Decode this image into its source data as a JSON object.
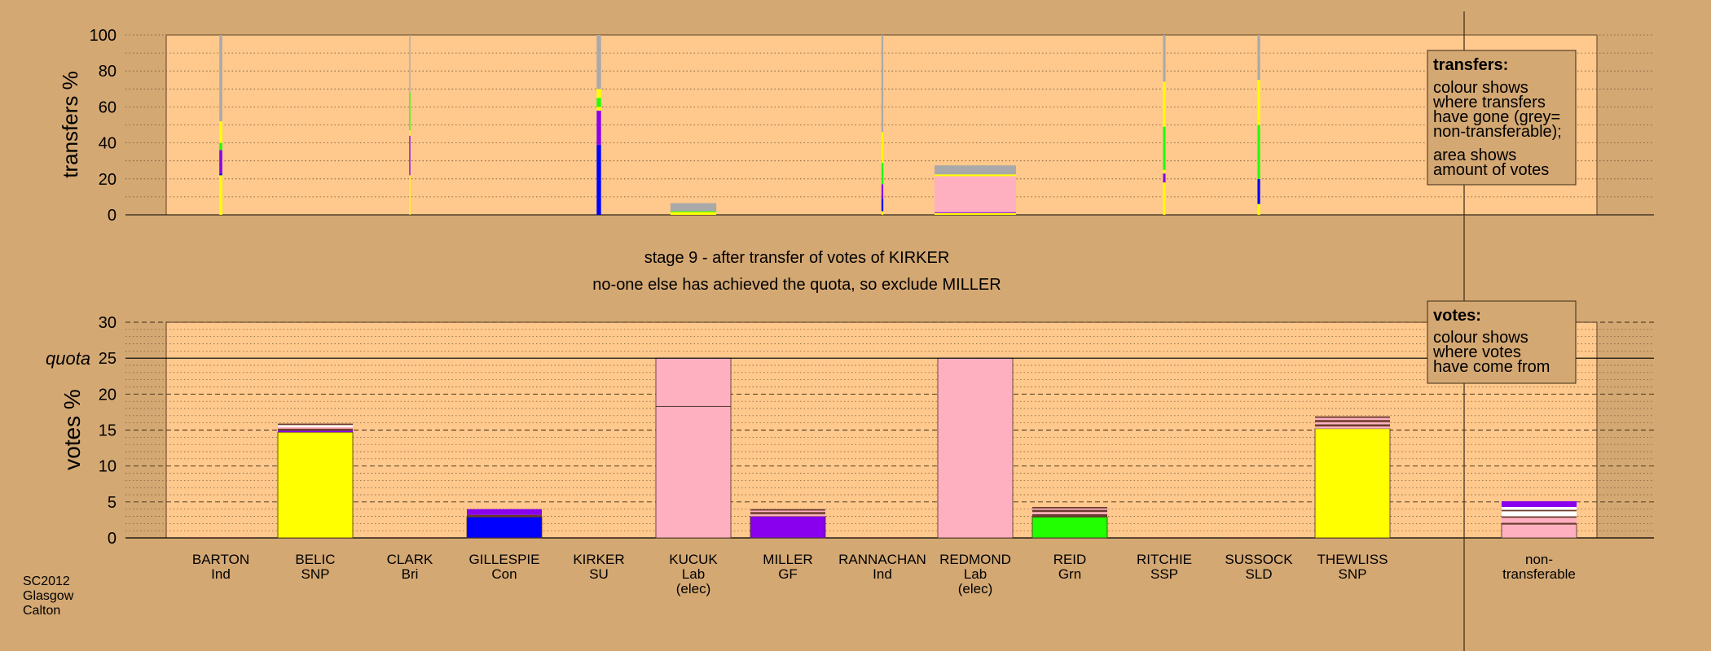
{
  "source": [
    "SC2012",
    "Glasgow",
    "Calton"
  ],
  "stage_line1": "stage 9 - after transfer of votes of KIRKER",
  "stage_line2": "no-one else has achieved the quota, so exclude MILLER",
  "legend_transfers": {
    "title": "transfers:",
    "lines": [
      "colour shows",
      "where transfers",
      "have gone (grey=",
      "non-transferable);",
      "area shows",
      "amount of votes"
    ]
  },
  "legend_votes": {
    "title": "votes:",
    "lines": [
      "colour shows",
      "where votes",
      "have come from"
    ]
  },
  "candidates": [
    {
      "name": "BARTON",
      "party": "Ind",
      "note": ""
    },
    {
      "name": "BELIC",
      "party": "SNP",
      "note": ""
    },
    {
      "name": "CLARK",
      "party": "Bri",
      "note": ""
    },
    {
      "name": "GILLESPIE",
      "party": "Con",
      "note": ""
    },
    {
      "name": "KIRKER",
      "party": "SU",
      "note": ""
    },
    {
      "name": "KUCUK",
      "party": "Lab",
      "note": "(elec)"
    },
    {
      "name": "MILLER",
      "party": "GF",
      "note": ""
    },
    {
      "name": "RANNACHAN",
      "party": "Ind",
      "note": ""
    },
    {
      "name": "REDMOND",
      "party": "Lab",
      "note": "(elec)"
    },
    {
      "name": "REID",
      "party": "Grn",
      "note": ""
    },
    {
      "name": "RITCHIE",
      "party": "SSP",
      "note": ""
    },
    {
      "name": "SUSSOCK",
      "party": "SLD",
      "note": ""
    },
    {
      "name": "THEWLISS",
      "party": "SNP",
      "note": ""
    }
  ],
  "nontransferable_label": [
    "non-",
    "transferable"
  ],
  "colors": {
    "background": "#d4a873",
    "panel": "#ffc88c",
    "SNP": "#ffff00",
    "Lab": "#ffb0c0",
    "Con": "#0000ff",
    "GF": "#8800ee",
    "Grn": "#22ff00",
    "nontransferable": "#a9a9a9",
    "dark": "#6b3a2e",
    "white": "#ffffff"
  },
  "chart_data": [
    {
      "type": "bar",
      "ylabel": "transfers %",
      "ylim": [
        0,
        100
      ],
      "yticks": [
        0,
        20,
        40,
        60,
        80,
        100
      ],
      "columns": [
        {
          "candidate": "BARTON",
          "width": 0.4,
          "segments": [
            {
              "c": "SNP",
              "v": 22
            },
            {
              "c": "Con",
              "v": 1
            },
            {
              "c": "GF",
              "v": 13
            },
            {
              "c": "Grn",
              "v": 4
            },
            {
              "c": "SNP",
              "v": 12
            },
            {
              "c": "nontransferable",
              "v": 48
            }
          ]
        },
        {
          "candidate": "CLARK",
          "width": 0.15,
          "segments": [
            {
              "c": "SNP",
              "v": 22
            },
            {
              "c": "GF",
              "v": 22
            },
            {
              "c": "SNP",
              "v": 3
            },
            {
              "c": "Grn",
              "v": 21
            },
            {
              "c": "nontransferable",
              "v": 32
            }
          ]
        },
        {
          "candidate": "KIRKER",
          "width": 0.6,
          "segments": [
            {
              "c": "Con",
              "v": 39
            },
            {
              "c": "GF",
              "v": 19
            },
            {
              "c": "SNP",
              "v": 2
            },
            {
              "c": "Grn",
              "v": 5
            },
            {
              "c": "SNP",
              "v": 5
            },
            {
              "c": "nontransferable",
              "v": 30
            }
          ]
        },
        {
          "candidate": "KUCUK",
          "width": 6.3,
          "segments": [
            {
              "c": "SNP",
              "v": 1.5
            },
            {
              "c": "Grn",
              "v": 0.5
            },
            {
              "c": "nontransferable",
              "v": 4.5
            }
          ]
        },
        {
          "candidate": "RANNACHAN",
          "width": 0.25,
          "segments": [
            {
              "c": "SNP",
              "v": 2
            },
            {
              "c": "Con",
              "v": 7
            },
            {
              "c": "GF",
              "v": 8
            },
            {
              "c": "Grn",
              "v": 12
            },
            {
              "c": "SNP",
              "v": 17
            },
            {
              "c": "nontransferable",
              "v": 54
            }
          ]
        },
        {
          "candidate": "REDMOND",
          "width": 11.2,
          "segments": [
            {
              "c": "SNP",
              "v": 1
            },
            {
              "c": "GF",
              "v": 0.5
            },
            {
              "c": "Lab",
              "v": 20
            },
            {
              "c": "SNP",
              "v": 1
            },
            {
              "c": "nontransferable",
              "v": 5
            }
          ]
        },
        {
          "candidate": "RITCHIE",
          "width": 0.35,
          "segments": [
            {
              "c": "SNP",
              "v": 18
            },
            {
              "c": "GF",
              "v": 5
            },
            {
              "c": "SNP",
              "v": 2
            },
            {
              "c": "Grn",
              "v": 24
            },
            {
              "c": "SNP",
              "v": 25
            },
            {
              "c": "nontransferable",
              "v": 26
            }
          ]
        },
        {
          "candidate": "SUSSOCK",
          "width": 0.35,
          "segments": [
            {
              "c": "SNP",
              "v": 6
            },
            {
              "c": "Con",
              "v": 14
            },
            {
              "c": "Grn",
              "v": 30
            },
            {
              "c": "SNP",
              "v": 25
            },
            {
              "c": "nontransferable",
              "v": 25
            }
          ]
        }
      ]
    },
    {
      "type": "bar",
      "ylabel": "votes %",
      "ylim": [
        0,
        30
      ],
      "yticks": [
        0,
        5,
        10,
        15,
        20,
        25,
        30
      ],
      "quota_label": "quota",
      "quota": 25,
      "columns": [
        {
          "candidate": "BARTON",
          "segments": [
            {
              "c": "dark",
              "v": 0.1
            }
          ]
        },
        {
          "candidate": "BELIC",
          "segments": [
            {
              "c": "SNP",
              "v": 14.7
            },
            {
              "c": "GF",
              "v": 0.2
            },
            {
              "c": "dark",
              "v": 0.3
            },
            {
              "c": "Lab",
              "v": 0.2
            },
            {
              "c": "white",
              "v": 0.3
            },
            {
              "c": "dark",
              "v": 0.2
            }
          ]
        },
        {
          "candidate": "CLARK",
          "segments": [
            {
              "c": "dark",
              "v": 0.1
            }
          ]
        },
        {
          "candidate": "GILLESPIE",
          "segments": [
            {
              "c": "Con",
              "v": 2.9
            },
            {
              "c": "dark",
              "v": 0.3
            },
            {
              "c": "GF",
              "v": 0.8
            }
          ]
        },
        {
          "candidate": "KIRKER",
          "segments": [
            {
              "c": "dark",
              "v": 0.1
            }
          ]
        },
        {
          "candidate": "KUCUK",
          "segments": [
            {
              "c": "Lab",
              "v": 18.3
            },
            {
              "c": "Lab",
              "v": 6.7
            }
          ]
        },
        {
          "candidate": "MILLER",
          "segments": [
            {
              "c": "GF",
              "v": 3.0
            },
            {
              "c": "Lab",
              "v": 0.3
            },
            {
              "c": "dark",
              "v": 0.3
            },
            {
              "c": "Lab",
              "v": 0.2
            },
            {
              "c": "dark",
              "v": 0.2
            }
          ]
        },
        {
          "candidate": "RANNACHAN",
          "segments": [
            {
              "c": "dark",
              "v": 0.1
            }
          ]
        },
        {
          "candidate": "REDMOND",
          "segments": [
            {
              "c": "Lab",
              "v": 25.0
            }
          ]
        },
        {
          "candidate": "REID",
          "segments": [
            {
              "c": "Grn",
              "v": 2.9
            },
            {
              "c": "dark",
              "v": 0.4
            },
            {
              "c": "Lab",
              "v": 0.3
            },
            {
              "c": "dark",
              "v": 0.3
            },
            {
              "c": "Lab",
              "v": 0.2
            },
            {
              "c": "dark",
              "v": 0.2
            }
          ]
        },
        {
          "candidate": "RITCHIE",
          "segments": [
            {
              "c": "dark",
              "v": 0.1
            }
          ]
        },
        {
          "candidate": "SUSSOCK",
          "segments": [
            {
              "c": "dark",
              "v": 0.1
            }
          ]
        },
        {
          "candidate": "THEWLISS",
          "segments": [
            {
              "c": "SNP",
              "v": 15.2
            },
            {
              "c": "Lab",
              "v": 0.3
            },
            {
              "c": "dark",
              "v": 0.3
            },
            {
              "c": "Lab",
              "v": 0.3
            },
            {
              "c": "dark",
              "v": 0.3
            },
            {
              "c": "Lab",
              "v": 0.3
            },
            {
              "c": "dark",
              "v": 0.2
            }
          ]
        },
        {
          "candidate": "non-transferable",
          "segments": [
            {
              "c": "Lab",
              "v": 1.9
            },
            {
              "c": "dark",
              "v": 0.2
            },
            {
              "c": "Lab",
              "v": 0.7
            },
            {
              "c": "dark",
              "v": 0.2
            },
            {
              "c": "white",
              "v": 0.7
            },
            {
              "c": "dark",
              "v": 0.2
            },
            {
              "c": "white",
              "v": 0.4
            },
            {
              "c": "GF",
              "v": 0.8
            }
          ]
        }
      ]
    }
  ]
}
